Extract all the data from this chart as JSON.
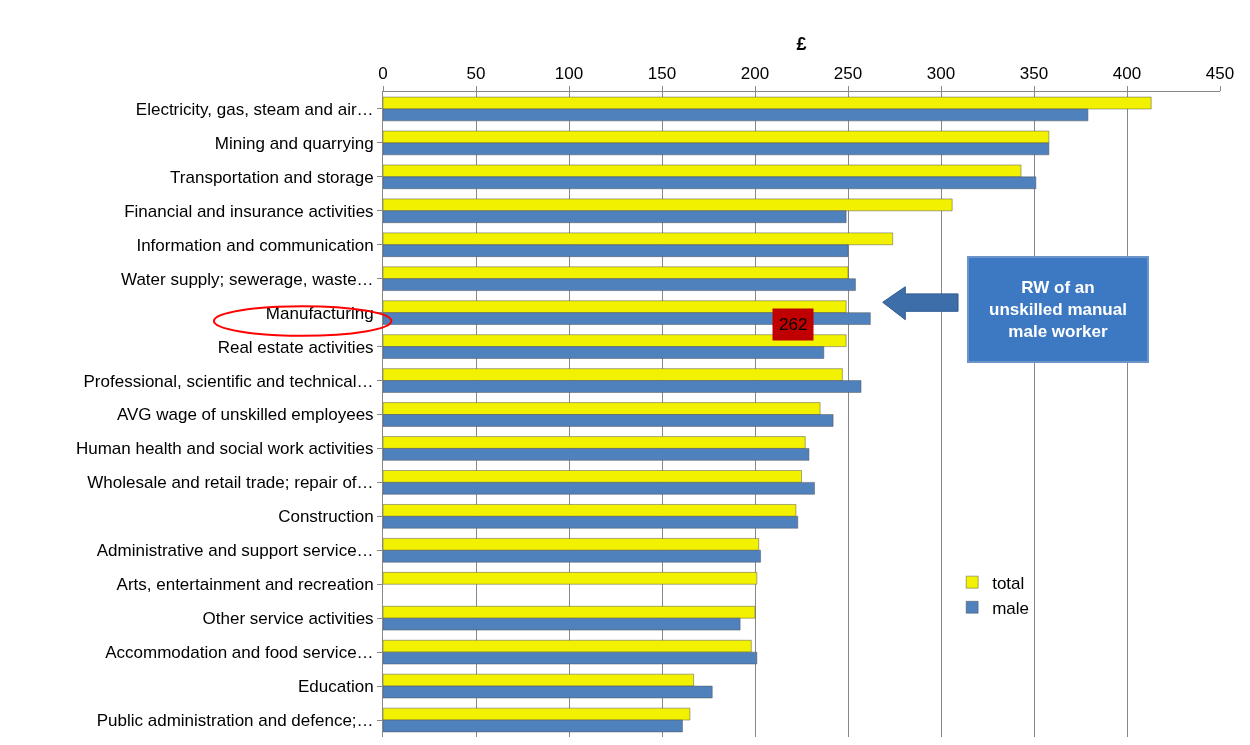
{
  "chart_data": {
    "type": "bar",
    "orientation": "horizontal",
    "xlabel": "£",
    "categories": [
      "Electricity, gas, steam and air…",
      "Mining and quarrying",
      "Transportation and storage",
      "Financial and insurance activities",
      "Information and communication",
      "Water supply; sewerage, waste…",
      "Manufacturing",
      "Real estate activities",
      "Professional, scientific and technical…",
      "AVG wage of unskilled employees",
      "Human health and social work activities",
      "Wholesale and retail trade; repair of…",
      "Construction",
      "Administrative and support service…",
      "Arts, entertainment and recreation",
      "Other service activities",
      "Accommodation and food service…",
      "Education",
      "Public administration and defence;…"
    ],
    "series": [
      {
        "name": "total",
        "color": "#f2f200",
        "values": [
          413,
          358,
          343,
          306,
          274,
          250,
          249,
          249,
          247,
          235,
          227,
          225,
          222,
          202,
          201,
          200,
          198,
          167,
          165
        ]
      },
      {
        "name": "male",
        "color": "#4f81bd",
        "values": [
          379,
          358,
          351,
          249,
          250,
          254,
          262,
          237,
          257,
          242,
          229,
          232,
          223,
          203,
          null,
          192,
          201,
          177,
          161
        ]
      }
    ],
    "xlim": [
      0,
      450
    ],
    "xticks": [
      0,
      50,
      100,
      150,
      200,
      250,
      300,
      350,
      400,
      450
    ],
    "grid": "x",
    "legend": "right",
    "annotations": [
      "262",
      "RW of an unskilled manual male worker"
    ]
  }
}
